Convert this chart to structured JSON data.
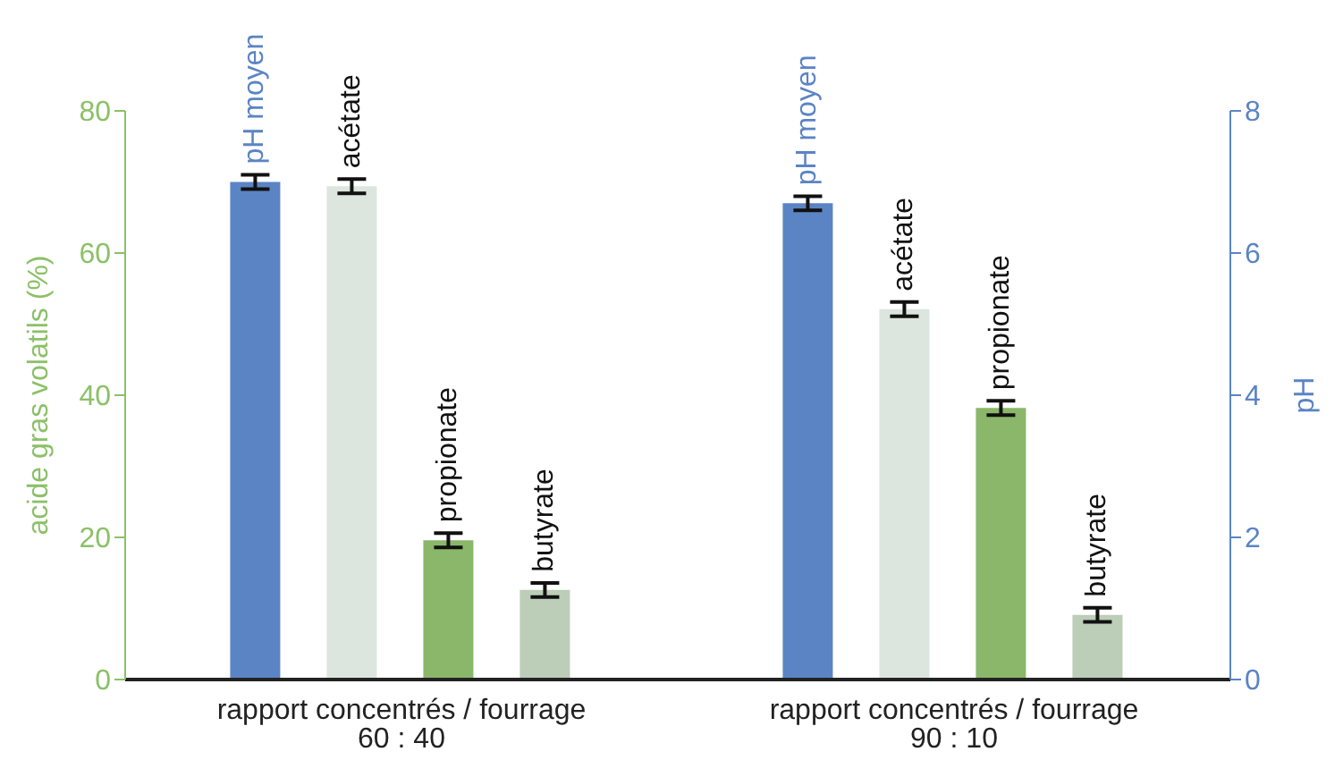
{
  "chart_data": {
    "type": "bar",
    "ylabel": "acide gras volatils (%)",
    "y2label": "pH",
    "categories": [
      "rapport concentrés / fourrage\n60 : 40",
      "rapport concentrés / fourrage\n90 : 10"
    ],
    "series": [
      {
        "name": "pH moyen",
        "color": "#5b84c4",
        "axis": "y2",
        "values": [
          7.0,
          6.7
        ],
        "errors": [
          0.1,
          0.1
        ]
      },
      {
        "name": "acétate",
        "color": "#dce6de",
        "values": [
          69.4,
          52.1
        ],
        "errors": [
          1,
          1
        ]
      },
      {
        "name": "propionate",
        "color": "#8ab76a",
        "values": [
          19.6,
          38.2
        ],
        "errors": [
          1,
          1
        ]
      },
      {
        "name": "butyrate",
        "color": "#bccdb8",
        "values": [
          12.6,
          9.1
        ],
        "errors": [
          1,
          1
        ]
      }
    ],
    "ylim": [
      0,
      80
    ],
    "yticks": [
      0,
      20,
      40,
      60,
      80
    ],
    "y2lim": [
      0,
      8
    ],
    "y2ticks": [
      0,
      2,
      4,
      6,
      8
    ]
  }
}
